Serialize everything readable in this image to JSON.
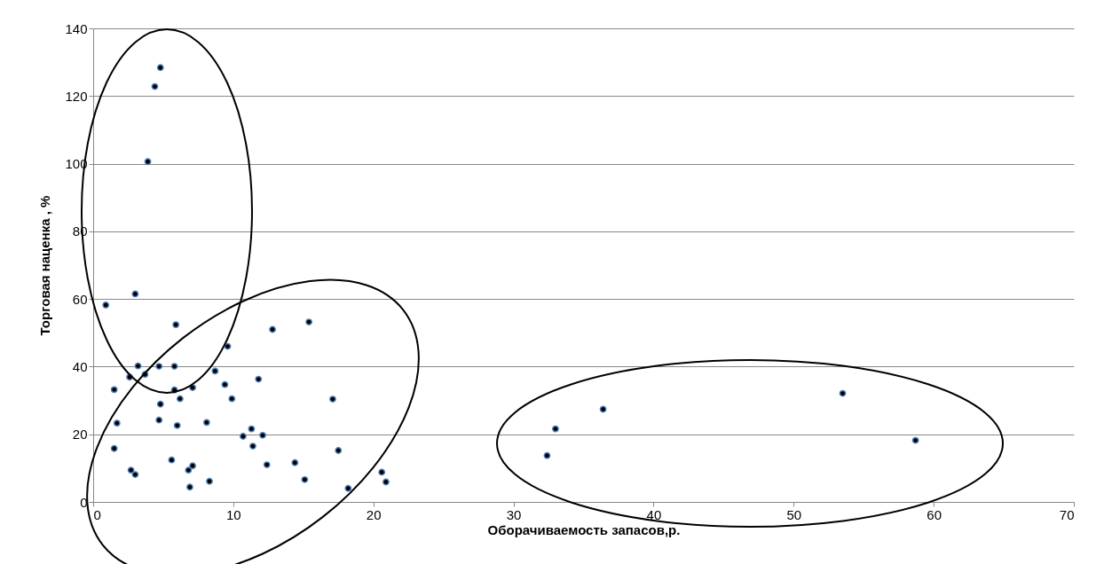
{
  "chart_data": {
    "type": "scatter",
    "xlabel": "Оборачиваемость запасов,р.",
    "ylabel": "Торговая наценка , %",
    "x": [
      0.9,
      3.0,
      1.5,
      1.7,
      1.5,
      2.7,
      3.0,
      2.6,
      3.2,
      3.7,
      4.7,
      5.8,
      5.8,
      6.2,
      4.8,
      4.7,
      6.0,
      5.9,
      7.1,
      5.6,
      6.8,
      7.1,
      6.9,
      8.3,
      8.1,
      8.7,
      9.6,
      9.4,
      9.9,
      10.7,
      11.3,
      11.4,
      12.1,
      12.4,
      11.8,
      12.8,
      15.4,
      14.4,
      15.1,
      17.1,
      17.5,
      18.2,
      20.6,
      20.9,
      4.8,
      4.4,
      3.9,
      32.4,
      33.0,
      36.4,
      53.5,
      58.7
    ],
    "series": [
      {
        "color": "#000000",
        "values": [
          58.2,
          61.5,
          33.2,
          23.3,
          15.8,
          9.4,
          8.1,
          36.9,
          40.2,
          37.7,
          40.1,
          40.1,
          33.1,
          30.5,
          28.9,
          24.2,
          22.6,
          52.4,
          33.8,
          12.4,
          9.4,
          10.7,
          4.4,
          6.1,
          23.5,
          38.7,
          46.0,
          34.7,
          30.5,
          19.4,
          21.6,
          16.5,
          19.7,
          11.0,
          36.3,
          51.0,
          53.2,
          11.6,
          6.6,
          30.4,
          15.2,
          4.0,
          8.8,
          5.9,
          128.4,
          122.8,
          100.6,
          13.7,
          21.6,
          27.4,
          32.1,
          18.2
        ]
      }
    ],
    "xlim": [
      0,
      70
    ],
    "xticks": [
      0,
      10,
      20,
      30,
      40,
      50,
      60,
      70
    ],
    "ylim": [
      0,
      140
    ],
    "yticks": [
      0,
      20,
      40,
      60,
      80,
      100,
      120,
      140
    ],
    "grid": "y",
    "marker": "circle",
    "legend": false
  }
}
